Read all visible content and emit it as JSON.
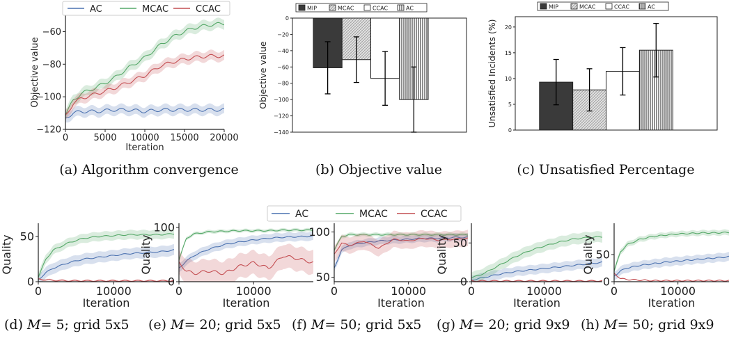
{
  "colors": {
    "AC": "#4c72b0",
    "MCAC": "#55a868",
    "CCAC": "#c44e52",
    "MIP": "#3a3a3a",
    "axis": "#222222"
  },
  "chart_data": [
    {
      "id": "a",
      "type": "line",
      "caption": "(a) Algorithm convergence",
      "xlabel": "Iteration",
      "ylabel": "Objective value",
      "xlim": [
        0,
        20000
      ],
      "ylim": [
        -120,
        -50
      ],
      "xticks": [
        0,
        5000,
        10000,
        15000,
        20000
      ],
      "yticks": [
        -120,
        -100,
        -80,
        -60
      ],
      "legend": [
        "AC",
        "MCAC",
        "CCAC"
      ],
      "legend_position": "top",
      "series": [
        {
          "name": "AC",
          "x": [
            0,
            1000,
            2000,
            4000,
            6000,
            8000,
            10000,
            12000,
            14000,
            16000,
            18000,
            20000
          ],
          "values": [
            -113,
            -110,
            -109,
            -109,
            -108,
            -108,
            -109,
            -108,
            -108,
            -108,
            -108,
            -108
          ],
          "band": 3
        },
        {
          "name": "MCAC",
          "x": [
            0,
            1000,
            2000,
            4000,
            6000,
            8000,
            10000,
            12000,
            14000,
            16000,
            18000,
            20000
          ],
          "values": [
            -111,
            -102,
            -98,
            -94,
            -89,
            -82,
            -76,
            -68,
            -62,
            -58,
            -56,
            -55
          ],
          "band": 3
        },
        {
          "name": "CCAC",
          "x": [
            0,
            1000,
            2000,
            4000,
            6000,
            8000,
            10000,
            12000,
            14000,
            16000,
            18000,
            20000
          ],
          "values": [
            -112,
            -104,
            -101,
            -98,
            -95,
            -91,
            -87,
            -81,
            -78,
            -76,
            -75,
            -75
          ],
          "band": 3
        }
      ]
    },
    {
      "id": "b",
      "type": "bar",
      "caption": "(b) Objective value",
      "ylabel": "Objective value",
      "ylim": [
        -140,
        0
      ],
      "yticks": [
        0,
        -20,
        -40,
        -60,
        -80,
        -100,
        -120,
        -140
      ],
      "legend": [
        "MIP",
        "MCAC",
        "CCAC",
        "AC"
      ],
      "legend_position": "top",
      "categories": [
        "MIP",
        "MCAC",
        "CCAC",
        "AC"
      ],
      "values": [
        -61,
        -51,
        -74,
        -100
      ],
      "errors": [
        32,
        28,
        33,
        40
      ]
    },
    {
      "id": "c",
      "type": "bar",
      "caption": "(c) Unsatisfied Percentage",
      "ylabel": "Unsatisfied Incidents (%)",
      "ylim": [
        0,
        22
      ],
      "yticks": [
        0,
        5,
        10,
        15,
        20
      ],
      "legend": [
        "MIP",
        "MCAC",
        "CCAC",
        "AC"
      ],
      "legend_position": "top",
      "categories": [
        "MIP",
        "MCAC",
        "CCAC",
        "AC"
      ],
      "values": [
        9.3,
        7.8,
        11.4,
        15.5
      ],
      "errors": [
        4.4,
        4.1,
        4.6,
        5.2
      ]
    },
    {
      "id": "d",
      "type": "line",
      "caption_prefix": "(d)",
      "caption_math": "M",
      "caption_rest": "= 5; grid 5x5",
      "xlabel": "Iteration",
      "ylabel": "Quality",
      "xlim": [
        0,
        18000
      ],
      "ylim": [
        0,
        60
      ],
      "xticks": [
        0,
        10000
      ],
      "yticks": [
        0,
        50
      ],
      "series": [
        {
          "name": "AC",
          "x": [
            0,
            1000,
            2000,
            4000,
            6000,
            8000,
            10000,
            12000,
            14000,
            16000,
            18000
          ],
          "values": [
            2,
            10,
            15,
            21,
            25,
            27,
            29,
            31,
            32,
            33,
            35
          ],
          "band": 6
        },
        {
          "name": "MCAC",
          "x": [
            0,
            1000,
            2000,
            4000,
            6000,
            8000,
            10000,
            12000,
            14000,
            16000,
            18000
          ],
          "values": [
            5,
            25,
            35,
            43,
            48,
            50,
            51,
            52,
            52,
            52,
            53
          ],
          "band": 5
        },
        {
          "name": "CCAC",
          "x": [
            0,
            1000,
            2000,
            4000,
            6000,
            8000,
            10000,
            12000,
            14000,
            16000,
            18000
          ],
          "values": [
            3,
            2,
            1.5,
            1,
            1,
            1,
            1,
            1,
            1,
            1,
            1
          ],
          "band": 1
        }
      ]
    },
    {
      "id": "e",
      "type": "line",
      "caption_prefix": "(e)",
      "caption_math": "M",
      "caption_rest": "= 20; grid 5x5",
      "xlabel": "Iteration",
      "ylabel": "Quality",
      "xlim": [
        0,
        18000
      ],
      "ylim": [
        0,
        100
      ],
      "xticks": [
        0,
        10000
      ],
      "yticks": [
        0,
        100
      ],
      "series": [
        {
          "name": "AC",
          "x": [
            0,
            1000,
            2000,
            4000,
            6000,
            8000,
            10000,
            12000,
            14000,
            16000,
            18000
          ],
          "values": [
            25,
            38,
            48,
            60,
            68,
            73,
            77,
            80,
            82,
            83,
            84
          ],
          "band": 8
        },
        {
          "name": "MCAC",
          "x": [
            0,
            1000,
            2000,
            4000,
            6000,
            8000,
            10000,
            12000,
            14000,
            16000,
            18000
          ],
          "values": [
            40,
            80,
            88,
            92,
            93,
            94,
            94,
            94,
            95,
            95,
            95
          ],
          "band": 3
        },
        {
          "name": "CCAC",
          "x": [
            0,
            1000,
            2000,
            4000,
            6000,
            8000,
            10000,
            12000,
            14000,
            16000,
            18000
          ],
          "values": [
            35,
            20,
            15,
            20,
            15,
            28,
            35,
            25,
            48,
            42,
            35
          ],
          "band": 22
        }
      ]
    },
    {
      "id": "f",
      "type": "line",
      "caption_prefix": "(f)",
      "caption_math": "M",
      "caption_rest": "= 50; grid 5x5",
      "xlabel": "Iteration",
      "ylabel": "",
      "xlim": [
        0,
        18000
      ],
      "ylim": [
        45,
        105
      ],
      "xticks": [
        0,
        10000
      ],
      "yticks": [
        50,
        100
      ],
      "series": [
        {
          "name": "AC",
          "x": [
            0,
            1000,
            2000,
            4000,
            6000,
            8000,
            10000,
            12000,
            14000,
            16000,
            18000
          ],
          "values": [
            60,
            80,
            85,
            88,
            90,
            91,
            92,
            93,
            93,
            94,
            94
          ],
          "band": 4
        },
        {
          "name": "MCAC",
          "x": [
            0,
            1000,
            2000,
            4000,
            6000,
            8000,
            10000,
            12000,
            14000,
            16000,
            18000
          ],
          "values": [
            80,
            95,
            97,
            97,
            97,
            97,
            97,
            97,
            97,
            97,
            97
          ],
          "band": 2
        },
        {
          "name": "CCAC",
          "x": [
            0,
            1000,
            2000,
            4000,
            6000,
            8000,
            10000,
            12000,
            14000,
            16000,
            18000
          ],
          "values": [
            75,
            88,
            85,
            90,
            82,
            92,
            90,
            93,
            91,
            92,
            93
          ],
          "band": 9
        }
      ]
    },
    {
      "id": "g",
      "type": "line",
      "caption_prefix": "(g)",
      "caption_math": "M",
      "caption_rest": "= 20; grid 9x9",
      "xlabel": "Iteration",
      "ylabel": "Quality",
      "xlim": [
        0,
        18000
      ],
      "ylim": [
        0,
        70
      ],
      "xticks": [
        0,
        10000
      ],
      "yticks": [
        0,
        50
      ],
      "series": [
        {
          "name": "AC",
          "x": [
            0,
            1000,
            2000,
            4000,
            6000,
            8000,
            10000,
            12000,
            14000,
            16000,
            18000
          ],
          "values": [
            2,
            4,
            6,
            10,
            13,
            15,
            17,
            19,
            21,
            23,
            25
          ],
          "band": 6
        },
        {
          "name": "MCAC",
          "x": [
            0,
            1000,
            2000,
            4000,
            6000,
            8000,
            10000,
            12000,
            14000,
            16000,
            18000
          ],
          "values": [
            5,
            8,
            12,
            22,
            32,
            40,
            46,
            51,
            55,
            57,
            58
          ],
          "band": 7
        },
        {
          "name": "CCAC",
          "x": [
            0,
            1000,
            2000,
            4000,
            6000,
            8000,
            10000,
            12000,
            14000,
            16000,
            18000
          ],
          "values": [
            1,
            1,
            1,
            1,
            1,
            1,
            1,
            1,
            1,
            1,
            1
          ],
          "band": 1
        }
      ]
    },
    {
      "id": "h",
      "type": "line",
      "caption_prefix": "(h)",
      "caption_math": "M",
      "caption_rest": "= 50; grid 9x9",
      "xlabel": "Iteration",
      "ylabel": "Quality",
      "xlim": [
        0,
        18000
      ],
      "ylim": [
        0,
        100
      ],
      "xticks": [
        0,
        10000
      ],
      "yticks": [
        0,
        50
      ],
      "series": [
        {
          "name": "AC",
          "x": [
            0,
            1000,
            2000,
            4000,
            6000,
            8000,
            10000,
            12000,
            14000,
            16000,
            18000
          ],
          "values": [
            10,
            20,
            25,
            30,
            33,
            36,
            38,
            40,
            42,
            44,
            46
          ],
          "band": 8
        },
        {
          "name": "MCAC",
          "x": [
            0,
            1000,
            2000,
            4000,
            6000,
            8000,
            10000,
            12000,
            14000,
            16000,
            18000
          ],
          "values": [
            20,
            55,
            68,
            78,
            83,
            86,
            88,
            89,
            90,
            90,
            91
          ],
          "band": 5
        },
        {
          "name": "CCAC",
          "x": [
            0,
            1000,
            2000,
            4000,
            6000,
            8000,
            10000,
            12000,
            14000,
            16000,
            18000
          ],
          "values": [
            15,
            6,
            4,
            3,
            2,
            2,
            2,
            2,
            2,
            2,
            2
          ],
          "band": 1
        }
      ]
    }
  ],
  "shared_legend": [
    "AC",
    "MCAC",
    "CCAC"
  ]
}
